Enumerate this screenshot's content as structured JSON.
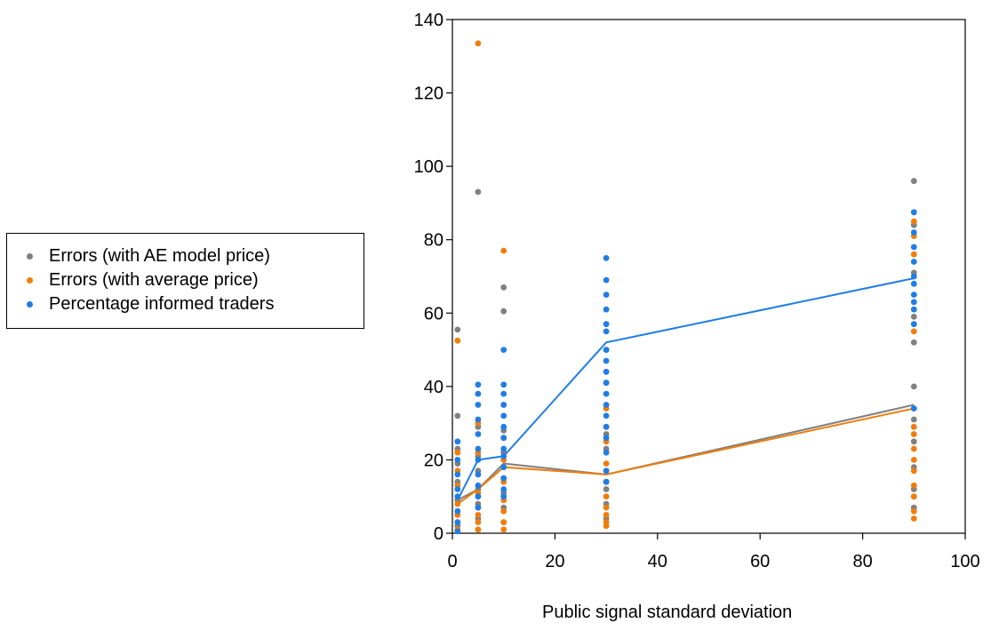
{
  "chart_data": {
    "type": "scatter",
    "title": "",
    "xlabel": "Public signal standard deviation",
    "ylabel": "",
    "xlim": [
      0,
      100
    ],
    "ylim": [
      0,
      140
    ],
    "x_ticks": [
      0,
      20,
      40,
      60,
      80,
      100
    ],
    "y_ticks": [
      0,
      20,
      40,
      60,
      80,
      100,
      120,
      140
    ],
    "x_tick_labels": [
      "0",
      "20",
      "40",
      "60",
      "80",
      "100"
    ],
    "y_tick_labels": [
      "0",
      "20",
      "40",
      "60",
      "80",
      "100",
      "120",
      "140"
    ],
    "grid": false,
    "legend_position": "left",
    "series": [
      {
        "name": "Errors (with AE model price)",
        "color": "#808080",
        "points": [
          [
            1,
            55.5
          ],
          [
            1,
            32
          ],
          [
            1,
            23
          ],
          [
            1,
            19
          ],
          [
            1,
            14
          ],
          [
            1,
            9
          ],
          [
            1,
            5
          ],
          [
            1,
            2
          ],
          [
            5,
            93
          ],
          [
            5,
            29
          ],
          [
            5,
            21
          ],
          [
            5,
            17
          ],
          [
            5,
            12
          ],
          [
            5,
            8
          ],
          [
            5,
            4
          ],
          [
            5,
            1
          ],
          [
            10,
            67
          ],
          [
            10,
            60.5
          ],
          [
            10,
            35
          ],
          [
            10,
            28
          ],
          [
            10,
            22
          ],
          [
            10,
            15
          ],
          [
            10,
            11
          ],
          [
            10,
            7
          ],
          [
            10,
            3
          ],
          [
            30,
            50
          ],
          [
            30,
            27
          ],
          [
            30,
            23
          ],
          [
            30,
            17
          ],
          [
            30,
            12
          ],
          [
            30,
            8
          ],
          [
            30,
            4
          ],
          [
            90,
            96
          ],
          [
            90,
            84
          ],
          [
            90,
            71
          ],
          [
            90,
            59
          ],
          [
            90,
            52
          ],
          [
            90,
            40
          ],
          [
            90,
            31
          ],
          [
            90,
            25
          ],
          [
            90,
            18
          ],
          [
            90,
            12
          ],
          [
            90,
            7
          ]
        ],
        "mean_line": [
          [
            1,
            9
          ],
          [
            5,
            12
          ],
          [
            10,
            19
          ],
          [
            30,
            16
          ],
          [
            90,
            35
          ]
        ]
      },
      {
        "name": "Errors (with average price)",
        "color": "#f07d0a",
        "points": [
          [
            1,
            52.5
          ],
          [
            1,
            22
          ],
          [
            1,
            17
          ],
          [
            1,
            13
          ],
          [
            1,
            8
          ],
          [
            1,
            5
          ],
          [
            1,
            3
          ],
          [
            1,
            1
          ],
          [
            5,
            133.5
          ],
          [
            5,
            30
          ],
          [
            5,
            22
          ],
          [
            5,
            16
          ],
          [
            5,
            11
          ],
          [
            5,
            7
          ],
          [
            5,
            5
          ],
          [
            5,
            3
          ],
          [
            5,
            1
          ],
          [
            10,
            77
          ],
          [
            10,
            26
          ],
          [
            10,
            20
          ],
          [
            10,
            14
          ],
          [
            10,
            9
          ],
          [
            10,
            6
          ],
          [
            10,
            3
          ],
          [
            10,
            1
          ],
          [
            30,
            41
          ],
          [
            30,
            34
          ],
          [
            30,
            29
          ],
          [
            30,
            25
          ],
          [
            30,
            19
          ],
          [
            30,
            14
          ],
          [
            30,
            10
          ],
          [
            30,
            7
          ],
          [
            30,
            5
          ],
          [
            30,
            3
          ],
          [
            30,
            2
          ],
          [
            90,
            85
          ],
          [
            90,
            81
          ],
          [
            90,
            76
          ],
          [
            90,
            55
          ],
          [
            90,
            29
          ],
          [
            90,
            27
          ],
          [
            90,
            23
          ],
          [
            90,
            20
          ],
          [
            90,
            17
          ],
          [
            90,
            13
          ],
          [
            90,
            10
          ],
          [
            90,
            6
          ],
          [
            90,
            4
          ]
        ],
        "mean_line": [
          [
            1,
            8
          ],
          [
            5,
            12
          ],
          [
            10,
            18
          ],
          [
            30,
            16
          ],
          [
            90,
            34
          ]
        ]
      },
      {
        "name": "Percentage informed traders",
        "color": "#1e7de6",
        "points": [
          [
            1,
            25
          ],
          [
            1,
            20
          ],
          [
            1,
            16
          ],
          [
            1,
            12
          ],
          [
            1,
            10
          ],
          [
            1,
            6
          ],
          [
            1,
            3
          ],
          [
            1,
            0.5
          ],
          [
            5,
            40.5
          ],
          [
            5,
            38
          ],
          [
            5,
            35
          ],
          [
            5,
            31
          ],
          [
            5,
            27
          ],
          [
            5,
            23
          ],
          [
            5,
            20
          ],
          [
            5,
            16
          ],
          [
            5,
            13
          ],
          [
            5,
            10
          ],
          [
            5,
            7
          ],
          [
            10,
            50
          ],
          [
            10,
            40.5
          ],
          [
            10,
            38
          ],
          [
            10,
            35
          ],
          [
            10,
            32
          ],
          [
            10,
            29
          ],
          [
            10,
            26
          ],
          [
            10,
            23
          ],
          [
            10,
            21
          ],
          [
            10,
            18
          ],
          [
            10,
            15
          ],
          [
            10,
            12
          ],
          [
            10,
            10
          ],
          [
            30,
            75
          ],
          [
            30,
            69
          ],
          [
            30,
            65
          ],
          [
            30,
            61
          ],
          [
            30,
            57
          ],
          [
            30,
            55
          ],
          [
            30,
            50
          ],
          [
            30,
            47
          ],
          [
            30,
            44
          ],
          [
            30,
            41
          ],
          [
            30,
            38
          ],
          [
            30,
            35
          ],
          [
            30,
            32
          ],
          [
            30,
            29
          ],
          [
            30,
            26
          ],
          [
            30,
            22
          ],
          [
            30,
            17
          ],
          [
            30,
            14
          ],
          [
            90,
            87.5
          ],
          [
            90,
            82
          ],
          [
            90,
            78
          ],
          [
            90,
            74
          ],
          [
            90,
            70
          ],
          [
            90,
            68
          ],
          [
            90,
            65
          ],
          [
            90,
            63
          ],
          [
            90,
            61
          ],
          [
            90,
            57
          ],
          [
            90,
            34
          ]
        ],
        "mean_line": [
          [
            1,
            9
          ],
          [
            5,
            20
          ],
          [
            10,
            21
          ],
          [
            30,
            52
          ],
          [
            90,
            69.5
          ]
        ]
      }
    ]
  }
}
